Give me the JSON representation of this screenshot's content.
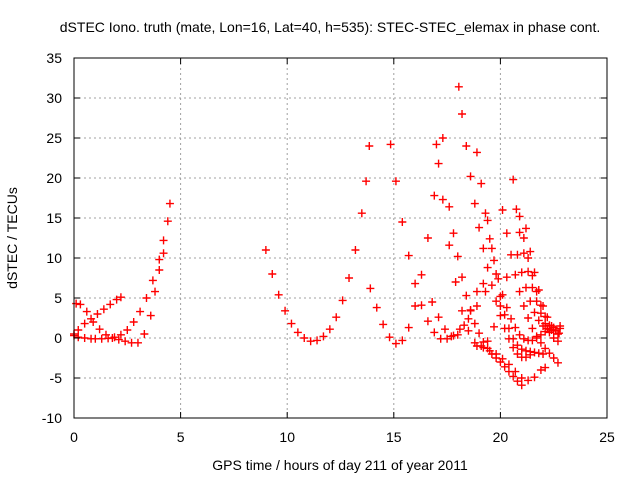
{
  "chart_data": {
    "type": "scatter",
    "title": "dSTEC Iono. truth (mate, Lon=16, Lat=40, h=535): STEC-STEC_elemax in phase cont.",
    "xlabel": "GPS time / hours of day 211 of year 2011",
    "ylabel": "dSTEC  / TECUs",
    "xlim": [
      0,
      25
    ],
    "ylim": [
      -10,
      35
    ],
    "x_ticks": [
      "0",
      "5",
      "10",
      "15",
      "20",
      "25"
    ],
    "y_ticks": [
      "-10",
      "-5",
      "0",
      "5",
      "10",
      "15",
      "20",
      "25",
      "30",
      "35"
    ],
    "grid": true,
    "marker": "+",
    "color": "#ff0000",
    "series": [
      {
        "x": [
          0.0,
          0.2,
          0.5,
          0.8,
          1.1,
          1.4,
          1.7,
          2.0,
          2.2
        ],
        "y": [
          0.5,
          1.0,
          1.8,
          2.4,
          3.0,
          3.6,
          4.2,
          4.8,
          5.1
        ]
      },
      {
        "x": [
          0.0,
          0.2,
          0.5,
          0.8,
          1.0,
          1.3,
          1.6,
          1.9,
          2.2,
          2.5,
          2.8,
          3.1,
          3.4,
          3.7,
          4.0,
          4.2,
          4.4,
          4.5
        ],
        "y": [
          0.3,
          0.1,
          0.0,
          -0.1,
          -0.1,
          -0.1,
          -0.05,
          0.1,
          0.4,
          1.0,
          2.0,
          3.3,
          5.0,
          7.2,
          9.8,
          12.2,
          14.6,
          16.8
        ]
      },
      {
        "x": [
          0.1,
          0.3,
          0.6,
          0.9,
          1.2,
          1.5,
          1.8,
          2.1,
          2.4,
          2.7,
          3.0,
          3.3,
          3.6,
          3.8,
          4.0,
          4.2
        ],
        "y": [
          4.3,
          4.2,
          3.3,
          2.0,
          1.1,
          0.4,
          0.0,
          -0.2,
          -0.4,
          -0.6,
          -0.6,
          0.5,
          2.8,
          5.8,
          8.5,
          10.6
        ]
      },
      {
        "x": [
          9.0,
          9.3,
          9.6,
          9.9,
          10.2,
          10.5,
          10.8,
          11.1,
          11.4,
          11.7,
          12.0,
          12.3,
          12.6,
          12.9,
          13.2,
          13.5,
          13.7,
          13.85
        ],
        "y": [
          11.0,
          8.0,
          5.4,
          3.4,
          1.8,
          0.7,
          0.0,
          -0.4,
          -0.3,
          0.2,
          1.1,
          2.6,
          4.7,
          7.5,
          11.0,
          15.6,
          19.6,
          24.0
        ]
      },
      {
        "x": [
          13.9,
          14.2,
          14.5,
          14.8,
          15.1,
          15.4,
          15.7,
          16.0,
          16.3,
          16.6,
          16.9,
          17.1,
          17.3
        ],
        "y": [
          6.2,
          3.8,
          1.7,
          0.1,
          -0.7,
          -0.3,
          1.3,
          4.0,
          7.9,
          12.5,
          17.8,
          21.8,
          25.0
        ]
      },
      {
        "x": [
          14.85,
          15.1,
          15.4,
          15.7,
          16.0,
          16.3,
          16.6,
          16.9,
          17.2,
          17.5,
          17.8,
          18.1,
          18.5,
          18.9,
          19.3
        ],
        "y": [
          24.2,
          19.6,
          14.5,
          10.3,
          6.8,
          4.1,
          2.1,
          0.7,
          -0.1,
          -0.1,
          0.3,
          1.1,
          2.4,
          4.0,
          5.8
        ]
      },
      {
        "x": [
          17.0,
          17.3,
          17.6,
          17.9,
          18.2,
          18.5,
          18.8,
          19.1,
          19.4,
          19.7,
          20.0,
          20.3
        ],
        "y": [
          24.2,
          17.3,
          11.6,
          7.0,
          3.4,
          0.9,
          -0.6,
          -1.0,
          -0.4,
          1.4,
          4.0,
          7.6
        ]
      },
      {
        "x": [
          18.05,
          18.2,
          18.4,
          18.6,
          18.8,
          19.0,
          19.2,
          19.4,
          19.6,
          19.8,
          20.0,
          20.2,
          20.4,
          20.6,
          20.8,
          21.0,
          21.2,
          21.4
        ],
        "y": [
          31.4,
          28.0,
          24.0,
          20.2,
          16.8,
          13.8,
          11.2,
          8.8,
          6.6,
          4.6,
          2.8,
          1.2,
          -0.1,
          -1.2,
          -2.0,
          -2.4,
          -2.4,
          -2.1
        ]
      },
      {
        "x": [
          17.6,
          17.8,
          18.0,
          18.2,
          18.4,
          18.6,
          18.8,
          19.0,
          19.2,
          19.4,
          19.6,
          19.8,
          20.0,
          20.2,
          20.4,
          20.6,
          20.8,
          21.0
        ],
        "y": [
          16.4,
          13.1,
          10.2,
          7.6,
          5.3,
          3.4,
          1.8,
          0.6,
          -0.5,
          -1.3,
          -2.0,
          -2.5,
          -3.0,
          -3.6,
          -4.2,
          -4.8,
          -5.4,
          -5.9
        ]
      },
      {
        "x": [
          16.8,
          17.1,
          17.4,
          17.7,
          18.0,
          18.3,
          18.6,
          18.9,
          19.2
        ],
        "y": [
          4.5,
          2.6,
          1.1,
          0.2,
          0.4,
          1.6,
          3.5,
          5.8,
          6.8
        ]
      },
      {
        "x": [
          18.9,
          19.1,
          19.3,
          19.5,
          19.7,
          19.9,
          20.1,
          20.3,
          20.5,
          20.7,
          20.9,
          21.1,
          21.3,
          21.5,
          21.7,
          21.9,
          22.1,
          22.3,
          22.5,
          22.8
        ],
        "y": [
          23.2,
          19.3,
          15.6,
          12.4,
          9.7,
          7.4,
          5.4,
          3.8,
          2.4,
          1.3,
          0.4,
          -0.1,
          -0.3,
          -0.3,
          0.0,
          0.4,
          0.8,
          1.1,
          1.3,
          1.5
        ]
      },
      {
        "x": [
          19.4,
          19.6,
          19.8,
          20.0,
          20.2,
          20.4,
          20.6,
          20.8,
          21.0,
          21.2,
          21.4,
          21.6,
          21.8,
          22.0
        ],
        "y": [
          14.7,
          11.2,
          8.0,
          5.2,
          2.9,
          1.2,
          -0.1,
          -0.9,
          -1.4,
          -1.6,
          -1.7,
          -1.8,
          -1.9,
          -2.0
        ]
      },
      {
        "x": [
          20.1,
          20.3,
          20.5,
          20.7,
          20.9,
          21.1,
          21.3,
          21.5,
          21.7,
          21.9,
          22.1,
          22.3,
          22.5,
          22.7
        ],
        "y": [
          16.0,
          13.1,
          10.4,
          7.9,
          5.8,
          4.0,
          2.5,
          1.2,
          0.2,
          -0.6,
          -1.3,
          -1.9,
          -2.5,
          -3.1
        ]
      },
      {
        "x": [
          20.6,
          20.75,
          20.9,
          21.1,
          21.3,
          21.5,
          21.7,
          21.9,
          22.1,
          22.3,
          22.5,
          22.7
        ],
        "y": [
          19.8,
          16.1,
          13.2,
          10.6,
          8.3,
          6.3,
          4.6,
          3.1,
          1.8,
          0.7,
          0.0,
          -0.4
        ]
      },
      {
        "x": [
          20.9,
          21.1,
          21.3,
          21.5,
          21.7,
          21.9,
          22.1,
          22.3,
          22.5,
          22.7
        ],
        "y": [
          15.2,
          12.5,
          10.0,
          7.8,
          5.8,
          4.1,
          2.7,
          1.6,
          0.9,
          0.5
        ]
      },
      {
        "x": [
          21.2,
          21.4,
          21.6,
          21.8,
          22.0,
          22.2,
          22.4,
          22.6,
          22.75
        ],
        "y": [
          13.7,
          10.8,
          8.2,
          6.0,
          4.0,
          2.6,
          1.5,
          0.9,
          0.6
        ]
      },
      {
        "x": [
          18.9,
          19.2,
          19.5,
          19.8,
          20.1,
          20.4,
          20.7,
          21.0,
          21.3,
          21.6,
          21.9,
          22.1
        ],
        "y": [
          -1.0,
          -1.2,
          -1.6,
          -2.0,
          -2.6,
          -3.3,
          -4.2,
          -5.0,
          -5.3,
          -4.9,
          -4.0,
          -3.7
        ]
      },
      {
        "x": [
          20.8,
          21.0,
          21.2,
          21.4,
          21.6,
          21.8,
          22.0,
          22.2,
          22.4,
          22.6,
          22.8
        ],
        "y": [
          10.4,
          8.2,
          6.3,
          4.6,
          3.2,
          2.2,
          1.5,
          1.2,
          1.0,
          1.0,
          1.2
        ]
      }
    ]
  }
}
